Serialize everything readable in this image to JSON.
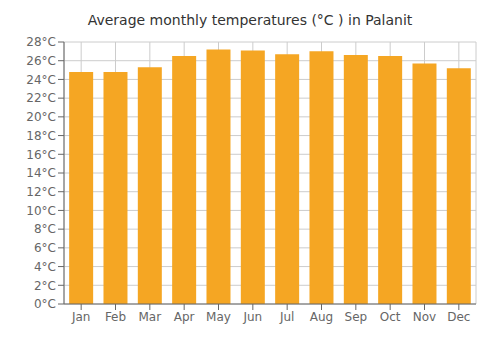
{
  "chart_data": {
    "type": "bar",
    "title": "Average monthly temperatures (°C ) in Palanit",
    "categories": [
      "Jan",
      "Feb",
      "Mar",
      "Apr",
      "May",
      "Jun",
      "Jul",
      "Aug",
      "Sep",
      "Oct",
      "Nov",
      "Dec"
    ],
    "values": [
      24.8,
      24.8,
      25.3,
      26.5,
      27.2,
      27.1,
      26.7,
      27.0,
      26.6,
      26.5,
      25.7,
      25.2
    ],
    "color": "#F5A623",
    "ylim": [
      0,
      28
    ],
    "yticks": [
      {
        "value": 0,
        "label": "0°C"
      },
      {
        "value": 2,
        "label": "2°C"
      },
      {
        "value": 4,
        "label": "4°C"
      },
      {
        "value": 6,
        "label": "6°C"
      },
      {
        "value": 8,
        "label": "8°C"
      },
      {
        "value": 10,
        "label": "10°C"
      },
      {
        "value": 12,
        "label": "12°C"
      },
      {
        "value": 14,
        "label": "14°C"
      },
      {
        "value": 16,
        "label": "16°C"
      },
      {
        "value": 18,
        "label": "18°C"
      },
      {
        "value": 20,
        "label": "20°C"
      },
      {
        "value": 22,
        "label": "22°C"
      },
      {
        "value": 24,
        "label": "24°C"
      },
      {
        "value": 26,
        "label": "26°C"
      },
      {
        "value": 28,
        "label": "28°C"
      }
    ],
    "grid": true
  }
}
